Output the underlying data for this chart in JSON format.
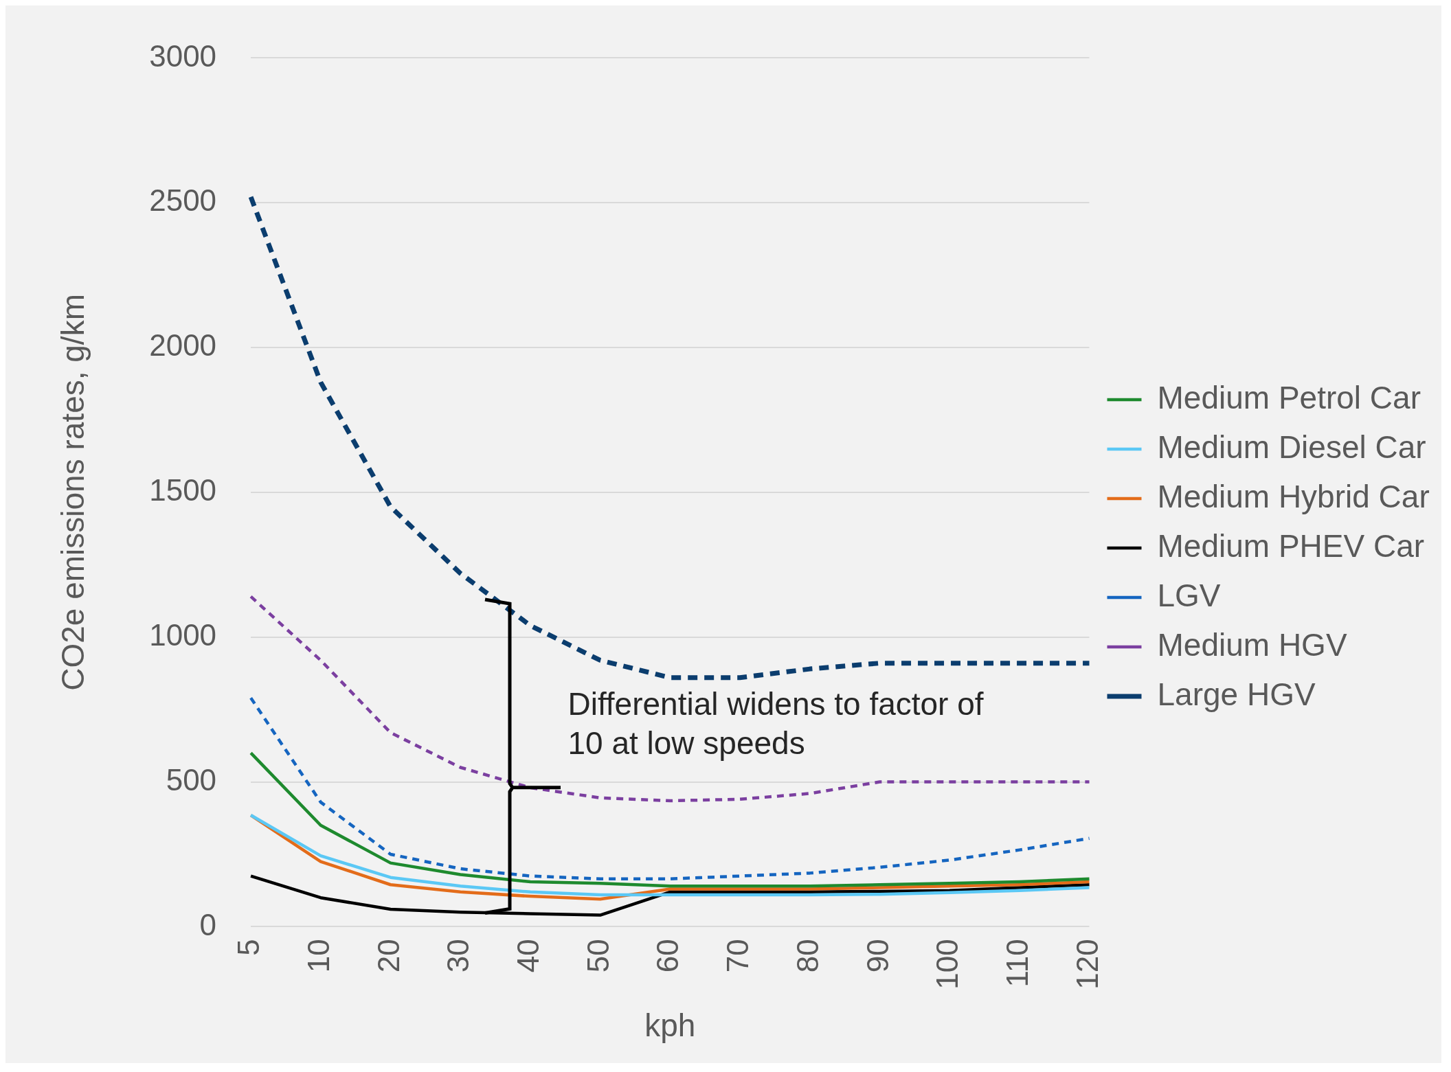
{
  "chart_data": {
    "type": "line",
    "xlabel": "kph",
    "ylabel": "CO2e emissions rates, g/km",
    "categories": [
      "5",
      "10",
      "20",
      "30",
      "40",
      "50",
      "60",
      "70",
      "80",
      "90",
      "100",
      "110",
      "120"
    ],
    "ylim": [
      0,
      3000
    ],
    "yticks": [
      0,
      500,
      1000,
      1500,
      2000,
      2500,
      3000
    ],
    "grid": "y",
    "legend": "right",
    "marker": "none",
    "annotations": [
      "Differential widens to factor of 10 at low speeds"
    ],
    "series": [
      {
        "name": "Medium Petrol Car",
        "color": "#1e8a2e",
        "line_style": "solid",
        "values": [
          600,
          350,
          220,
          180,
          155,
          150,
          140,
          140,
          140,
          145,
          150,
          155,
          165
        ]
      },
      {
        "name": "Medium Diesel Car",
        "color": "#5bc8f5",
        "line_style": "solid",
        "values": [
          385,
          245,
          170,
          140,
          120,
          110,
          110,
          110,
          110,
          112,
          118,
          125,
          135
        ]
      },
      {
        "name": "Medium Hybrid Car",
        "color": "#e36c1a",
        "line_style": "solid",
        "values": [
          385,
          225,
          145,
          120,
          105,
          95,
          130,
          130,
          130,
          135,
          140,
          145,
          155
        ]
      },
      {
        "name": "Medium PHEV Car",
        "color": "#000000",
        "line_style": "solid",
        "values": [
          175,
          100,
          60,
          50,
          45,
          40,
          120,
          120,
          120,
          122,
          125,
          135,
          145
        ]
      },
      {
        "name": "LGV",
        "color": "#1565c0",
        "line_style": "dashed",
        "values": [
          790,
          430,
          250,
          200,
          175,
          165,
          165,
          175,
          185,
          205,
          230,
          265,
          305
        ]
      },
      {
        "name": "Medium HGV",
        "color": "#7b3fa0",
        "line_style": "dashed",
        "values": [
          1140,
          920,
          670,
          550,
          480,
          445,
          435,
          440,
          460,
          500,
          500,
          500,
          500
        ]
      },
      {
        "name": "Large HGV",
        "color": "#0b3d6e",
        "line_style": "dashed",
        "values": [
          2520,
          1880,
          1450,
          1220,
          1040,
          920,
          860,
          860,
          890,
          910,
          910,
          910,
          910
        ]
      }
    ]
  }
}
